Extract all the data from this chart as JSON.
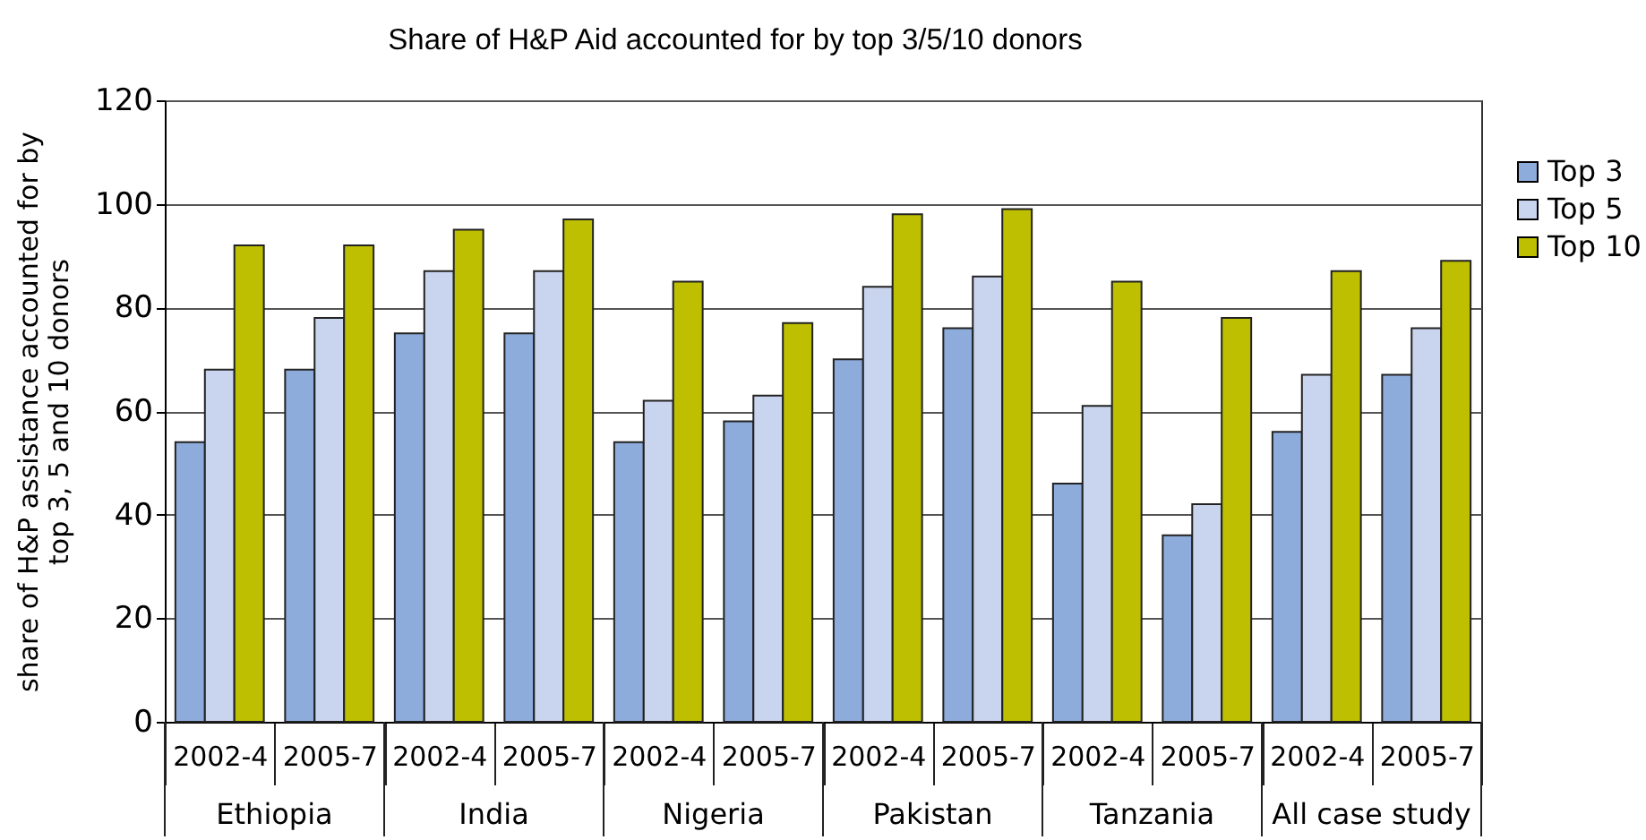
{
  "chart_data": {
    "type": "bar",
    "title": "Share of H&P Aid accounted for by top 3/5/10 donors",
    "ylabel": "share of H&P assistance accounted for by top 3, 5 and 10 donors",
    "categories": [
      "2002-4",
      "2005-7",
      "2002-4",
      "2005-7",
      "2002-4",
      "2005-7",
      "2002-4",
      "2005-7",
      "2002-4",
      "2005-7",
      "2002-4",
      "2005-7"
    ],
    "annotations": [
      "Ethiopia",
      "India",
      "Nigeria",
      "Pakistan",
      "Tanzania",
      "All case study"
    ],
    "series": [
      {
        "name": "Top 3",
        "color": "#8eacdb",
        "values": [
          54,
          68,
          75,
          75,
          54,
          58,
          70,
          76,
          46,
          36,
          56,
          67
        ]
      },
      {
        "name": "Top 5",
        "color": "#c9d4ee",
        "values": [
          68,
          78,
          87,
          87,
          62,
          63,
          84,
          86,
          61,
          42,
          67,
          76
        ]
      },
      {
        "name": "Top 10",
        "color": "#bdbf00",
        "values": [
          92,
          92,
          95,
          97,
          85,
          77,
          98,
          99,
          85,
          78,
          87,
          89
        ]
      }
    ],
    "ylim": [
      0,
      120
    ],
    "yticks": [
      0,
      20,
      40,
      60,
      80,
      100,
      120
    ],
    "grid": "y",
    "legend": "top right"
  }
}
